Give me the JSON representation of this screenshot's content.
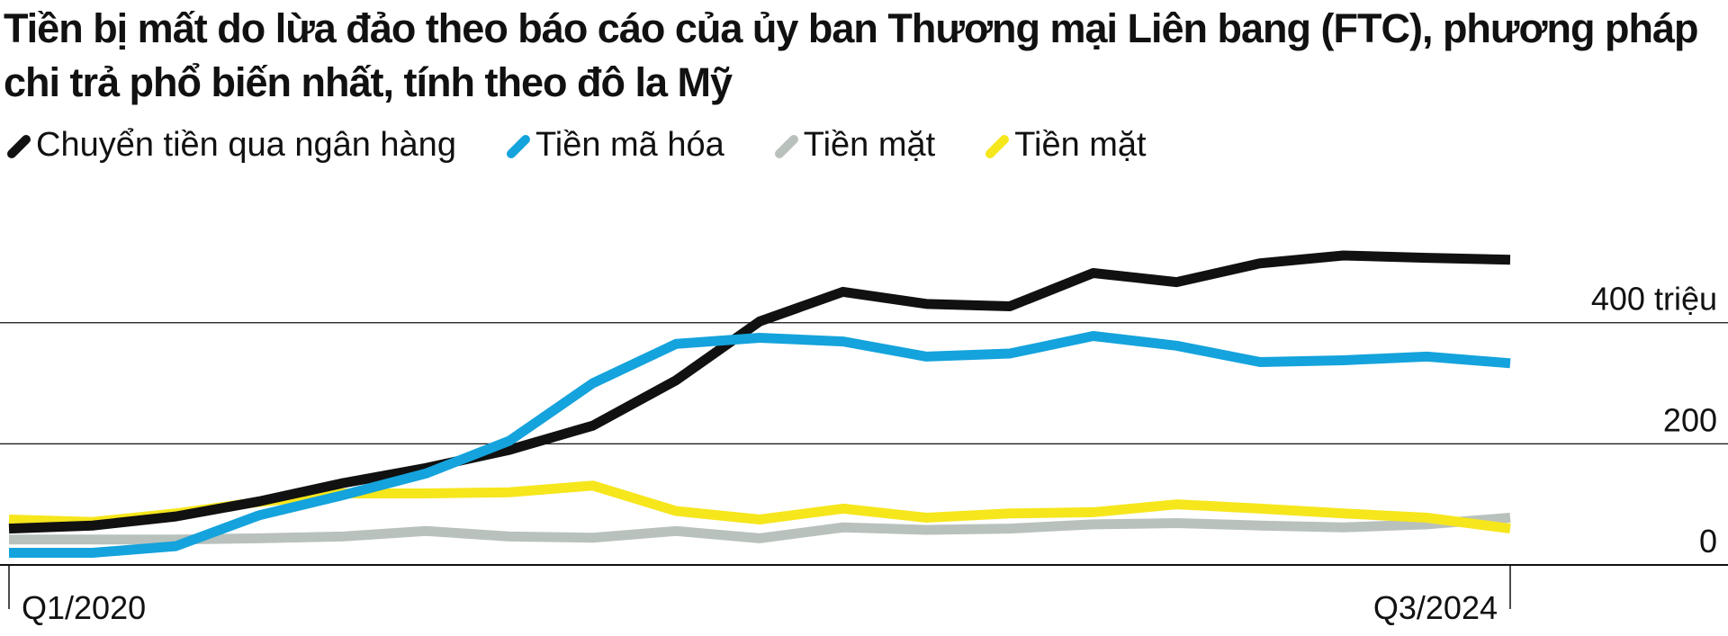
{
  "chart_data": {
    "type": "line",
    "title": "Tiền bị mất do lừa đảo theo báo cáo của ủy ban Thương mại Liên bang (FTC), phương pháp chi trả phổ biến nhất, tính theo đô la Mỹ",
    "categories": [
      "Q1/2020",
      null,
      null,
      null,
      null,
      null,
      null,
      null,
      null,
      null,
      null,
      null,
      null,
      null,
      null,
      null,
      null,
      null,
      "Q3/2024"
    ],
    "series": [
      {
        "name": "Chuyển tiền qua ngân hàng",
        "color": "#111111",
        "values": [
          60,
          65,
          80,
          105,
          135,
          160,
          190,
          230,
          305,
          402,
          451,
          431,
          427,
          482,
          467,
          498,
          511,
          507,
          504
        ]
      },
      {
        "name": "Tiền mã hóa",
        "color": "#14a3dc",
        "values": [
          20,
          20,
          31,
          82,
          115,
          151,
          205,
          300,
          365,
          375,
          369,
          344,
          349,
          378,
          362,
          335,
          338,
          344,
          333
        ]
      },
      {
        "name": "Tiền mặt",
        "color": "#b9c1bd",
        "values": [
          42,
          42,
          42,
          44,
          47,
          56,
          47,
          45,
          56,
          44,
          62,
          58,
          60,
          67,
          69,
          65,
          62,
          67,
          78
        ]
      },
      {
        "name": "Tiền mặt",
        "color": "#f6e61c",
        "values": [
          75,
          71,
          85,
          104,
          118,
          118,
          120,
          131,
          89,
          75,
          93,
          78,
          85,
          87,
          100,
          93,
          85,
          78,
          60
        ]
      }
    ],
    "ylim": [
      0,
      560
    ],
    "yticks": [
      0,
      200,
      {
        "value": 400,
        "label": "400 triệu"
      }
    ],
    "grid": true
  }
}
